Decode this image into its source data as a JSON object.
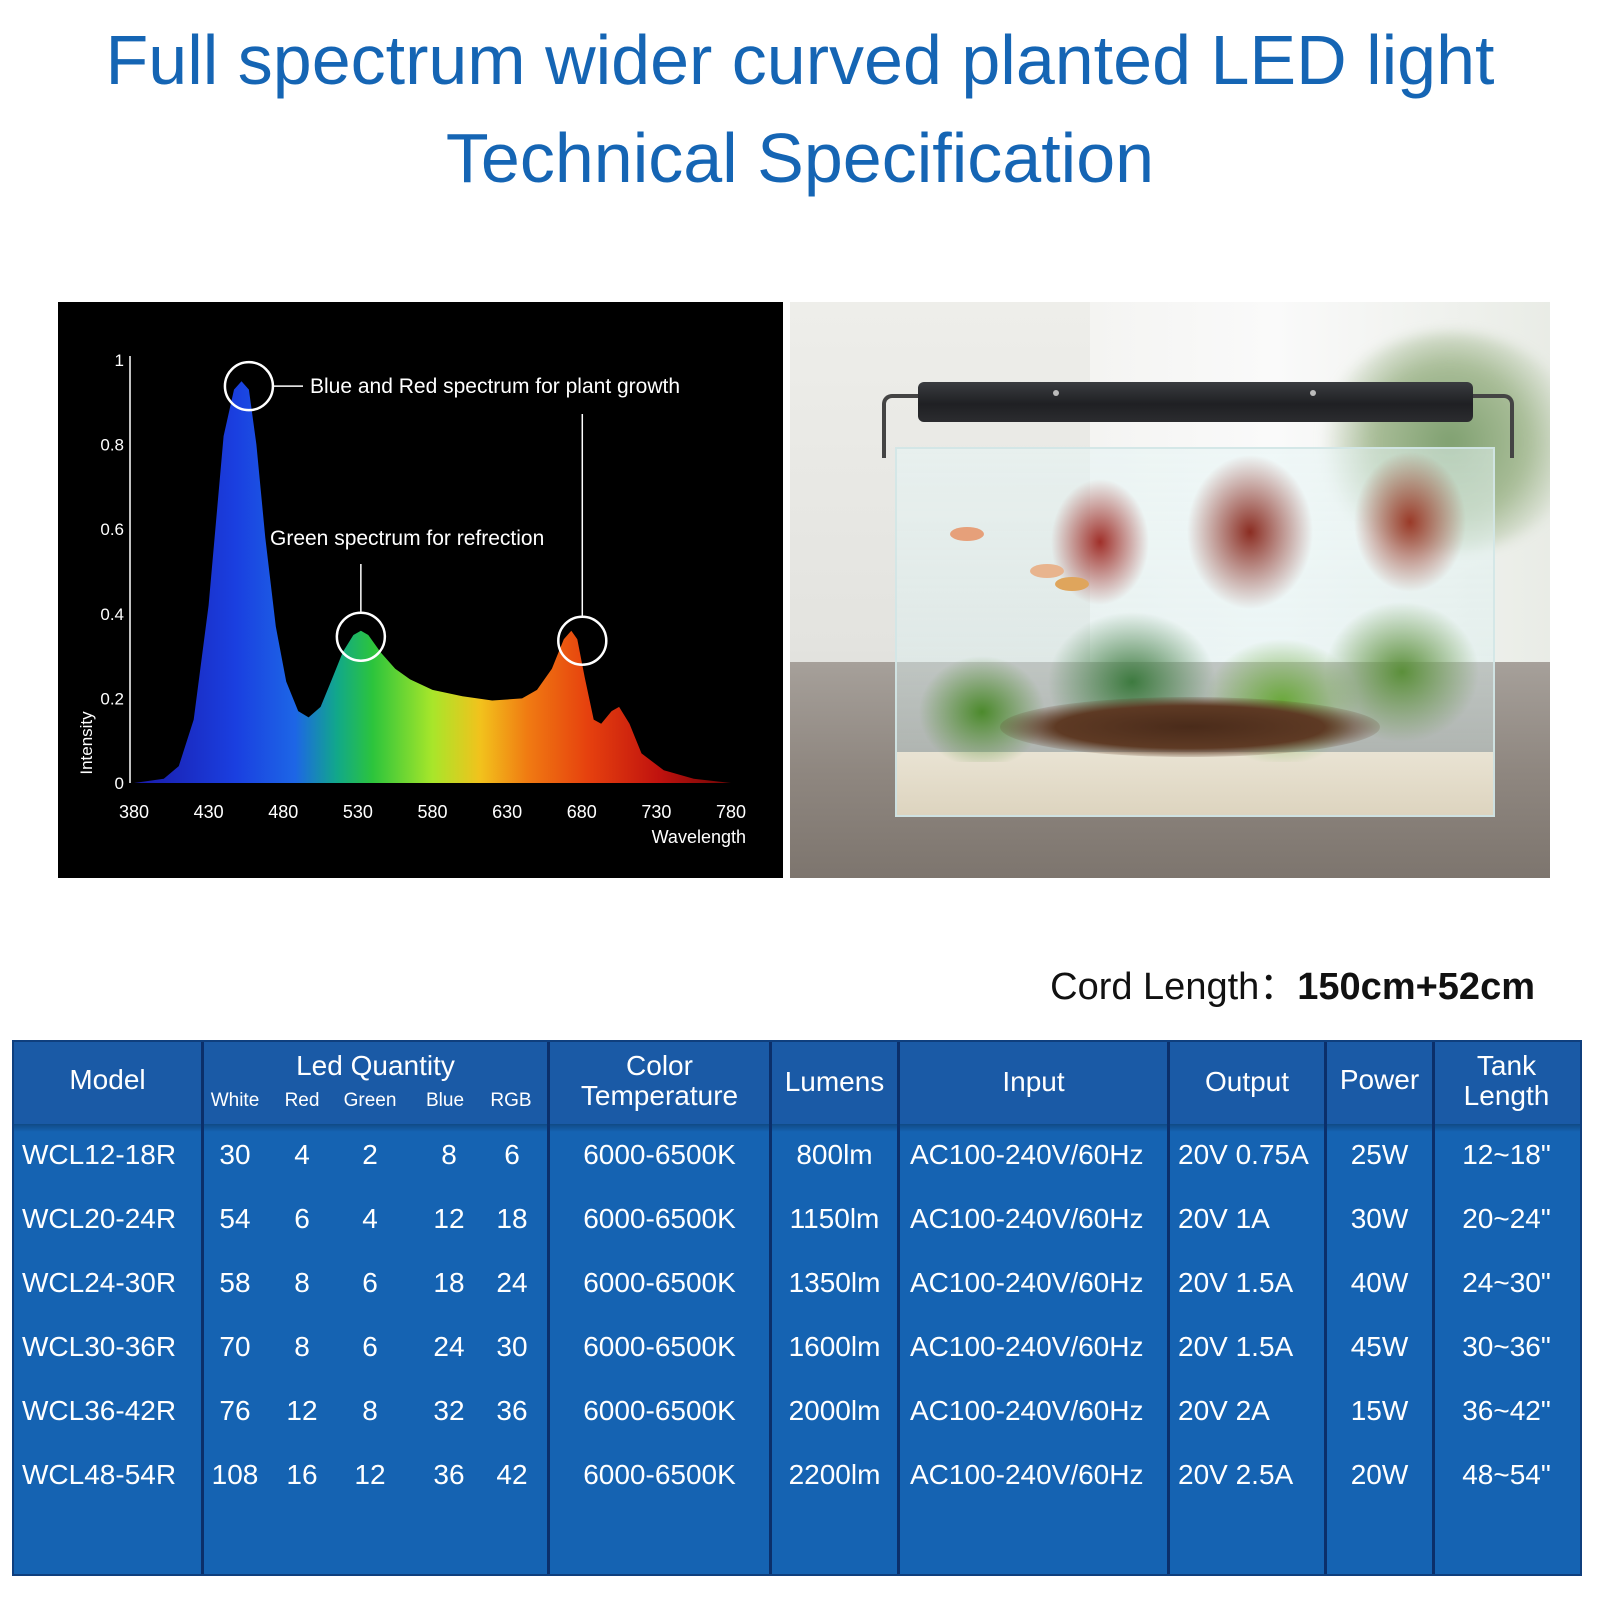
{
  "title_line1": "Full spectrum wider curved planted LED light",
  "title_line2": "Technical Specification",
  "chart_data": {
    "type": "area",
    "xlabel": "Wavelength",
    "ylabel": "Intensity",
    "xlim": [
      380,
      780
    ],
    "ylim": [
      0,
      1
    ],
    "x_ticks": [
      380,
      430,
      480,
      530,
      580,
      630,
      680,
      730,
      780
    ],
    "y_ticks": [
      0,
      0.2,
      0.4,
      0.6,
      0.8,
      1
    ],
    "x": [
      380,
      400,
      410,
      420,
      430,
      440,
      447,
      452,
      457,
      462,
      468,
      475,
      482,
      490,
      497,
      505,
      512,
      520,
      527,
      532,
      537,
      545,
      555,
      565,
      580,
      600,
      620,
      640,
      650,
      660,
      668,
      673,
      677,
      682,
      688,
      693,
      700,
      705,
      712,
      720,
      735,
      755,
      780
    ],
    "y": [
      0,
      0.01,
      0.04,
      0.15,
      0.42,
      0.82,
      0.93,
      0.95,
      0.93,
      0.8,
      0.58,
      0.37,
      0.24,
      0.17,
      0.155,
      0.18,
      0.24,
      0.31,
      0.35,
      0.36,
      0.35,
      0.31,
      0.27,
      0.245,
      0.22,
      0.205,
      0.195,
      0.2,
      0.22,
      0.27,
      0.34,
      0.36,
      0.34,
      0.25,
      0.15,
      0.14,
      0.17,
      0.18,
      0.14,
      0.07,
      0.03,
      0.01,
      0
    ],
    "annotations": [
      {
        "text": "Blue and Red spectrum for plant growth",
        "targets": [
          [
            457,
            0.95
          ],
          [
            675,
            0.36
          ]
        ]
      },
      {
        "text": "Green spectrum for refrection",
        "targets": [
          [
            532,
            0.36
          ]
        ]
      }
    ]
  },
  "cord": {
    "label": "Cord Length：",
    "value": "150cm+52cm"
  },
  "table": {
    "headers": {
      "model": "Model",
      "led_quantity": "Led Quantity",
      "white": "White",
      "red": "Red",
      "green": "Green",
      "blue": "Blue",
      "rgb": "RGB",
      "color_temp_1": "Color",
      "color_temp_2": "Temperature",
      "lumens": "Lumens",
      "input": "Input",
      "output": "Output",
      "power": "Power",
      "tank_1": "Tank",
      "tank_2": "Length"
    },
    "rows": [
      {
        "model": "WCL12-18R",
        "white": "30",
        "red": "4",
        "green": "2",
        "blue": "8",
        "rgb": "6",
        "temp": "6000-6500K",
        "lumens": "800lm",
        "input": "AC100-240V/60Hz",
        "output": "20V 0.75A",
        "power": "25W",
        "tank": "12~18\""
      },
      {
        "model": "WCL20-24R",
        "white": "54",
        "red": "6",
        "green": "4",
        "blue": "12",
        "rgb": "18",
        "temp": "6000-6500K",
        "lumens": "1150lm",
        "input": "AC100-240V/60Hz",
        "output": "20V 1A",
        "power": "30W",
        "tank": "20~24\""
      },
      {
        "model": "WCL24-30R",
        "white": "58",
        "red": "8",
        "green": "6",
        "blue": "18",
        "rgb": "24",
        "temp": "6000-6500K",
        "lumens": "1350lm",
        "input": "AC100-240V/60Hz",
        "output": "20V 1.5A",
        "power": "40W",
        "tank": "24~30\""
      },
      {
        "model": "WCL30-36R",
        "white": "70",
        "red": "8",
        "green": "6",
        "blue": "24",
        "rgb": "30",
        "temp": "6000-6500K",
        "lumens": "1600lm",
        "input": "AC100-240V/60Hz",
        "output": "20V 1.5A",
        "power": "45W",
        "tank": "30~36\""
      },
      {
        "model": "WCL36-42R",
        "white": "76",
        "red": "12",
        "green": "8",
        "blue": "32",
        "rgb": "36",
        "temp": "6000-6500K",
        "lumens": "2000lm",
        "input": "AC100-240V/60Hz",
        "output": "20V 2A",
        "power": "15W",
        "tank": "36~42\""
      },
      {
        "model": "WCL48-54R",
        "white": "108",
        "red": "16",
        "green": "12",
        "blue": "36",
        "rgb": "42",
        "temp": "6000-6500K",
        "lumens": "2200lm",
        "input": "AC100-240V/60Hz",
        "output": "20V 2.5A",
        "power": "20W",
        "tank": "48~54\""
      }
    ]
  },
  "colors": {
    "title_blue": "#1565b4",
    "table_blue": "#1563b2",
    "table_border": "#0b2f6a"
  }
}
